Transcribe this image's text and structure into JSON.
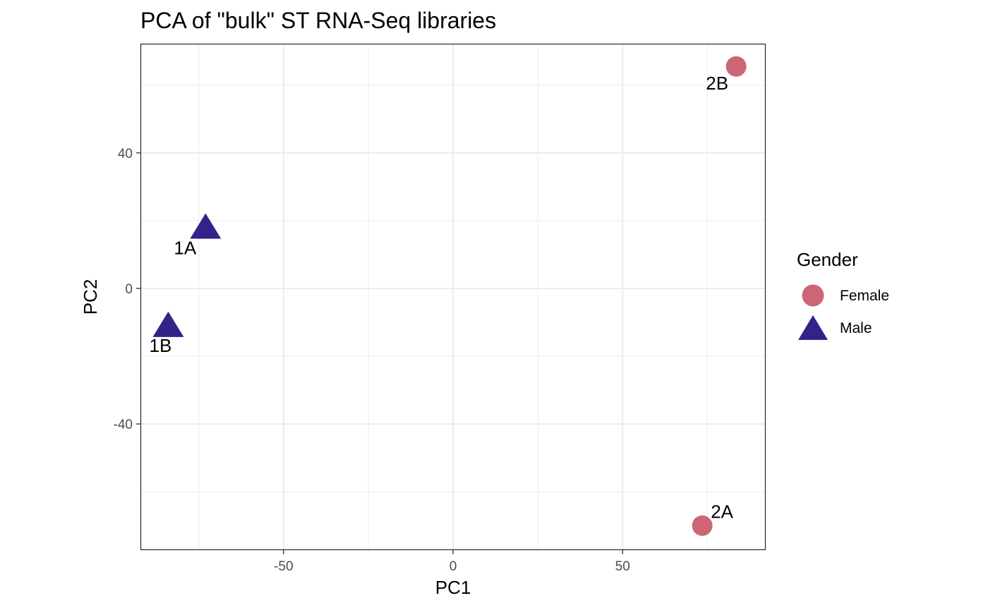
{
  "chart_data": {
    "type": "scatter",
    "title": "PCA of \"bulk\" ST RNA-Seq libraries",
    "xlabel": "PC1",
    "ylabel": "PC2",
    "xlim": [
      -92,
      92
    ],
    "ylim": [
      -77,
      72
    ],
    "x_ticks": [
      -50,
      0,
      50
    ],
    "y_ticks": [
      -40,
      0,
      40
    ],
    "x_tick_labels": [
      "-50",
      "0",
      "50"
    ],
    "y_tick_labels": [
      "-40",
      "0",
      "40"
    ],
    "grid": true,
    "theme": "bw",
    "legend": {
      "title": "Gender",
      "placement": "right",
      "entries": [
        {
          "label": "Female",
          "shape": "circle",
          "color": "#cc6677"
        },
        {
          "label": "Male",
          "shape": "triangle",
          "color": "#332288"
        }
      ]
    },
    "points": [
      {
        "label": "1A",
        "x": -73,
        "y": 18,
        "group": "Male"
      },
      {
        "label": "1B",
        "x": -84,
        "y": -11,
        "group": "Male"
      },
      {
        "label": "2A",
        "x": 73.5,
        "y": -70,
        "group": "Female"
      },
      {
        "label": "2B",
        "x": 83.5,
        "y": 65.5,
        "group": "Female"
      }
    ]
  }
}
